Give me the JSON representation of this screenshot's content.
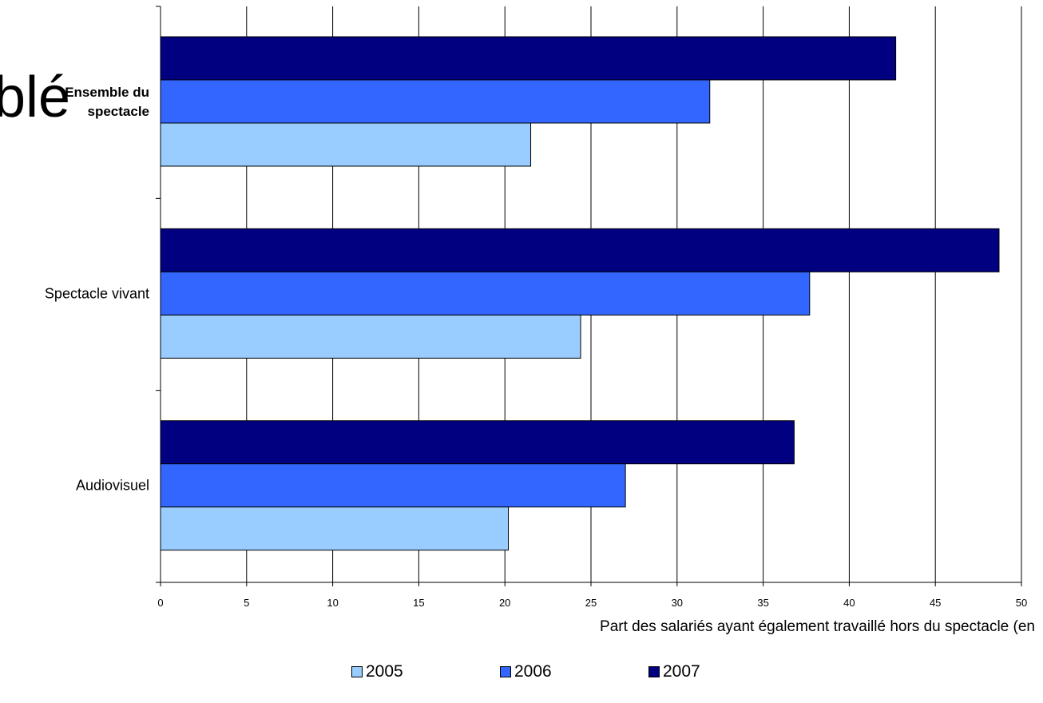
{
  "stray_text": "blé",
  "chart_data": {
    "type": "bar",
    "orientation": "horizontal",
    "categories": [
      "Ensemble du spectacle",
      "Spectacle vivant",
      "Audiovisuel"
    ],
    "category_lines": [
      [
        "Ensemble du",
        "spectacle"
      ],
      [
        "Spectacle vivant"
      ],
      [
        "Audiovisuel"
      ]
    ],
    "series": [
      {
        "name": "2005",
        "color": "#99ccff",
        "values": [
          21.5,
          24.4,
          20.2
        ]
      },
      {
        "name": "2006",
        "color": "#3366ff",
        "values": [
          31.9,
          37.7,
          27.0
        ]
      },
      {
        "name": "2007",
        "color": "#000080",
        "values": [
          42.7,
          48.7,
          36.8
        ]
      }
    ],
    "xlim": [
      0,
      50
    ],
    "xticks": [
      "0",
      "5",
      "10",
      "15",
      "20",
      "25",
      "30",
      "35",
      "40",
      "45",
      "50"
    ],
    "xlabel": "Part des salariés ayant également travaillé hors du spectacle (en %)",
    "xlabel_lines": [
      "Part des salariés ayant également travaillé hors du spectacle (en",
      "%)"
    ],
    "grid": true,
    "legend_position": "bottom"
  }
}
